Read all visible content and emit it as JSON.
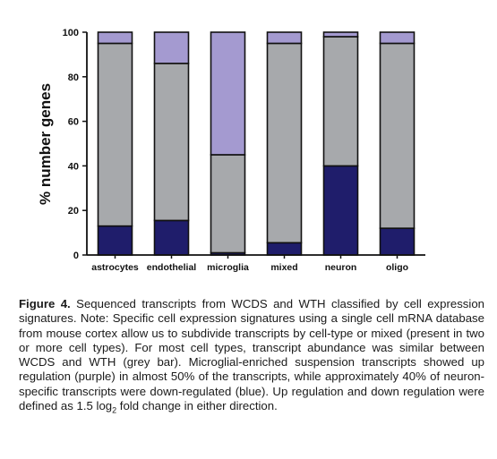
{
  "chart_data": {
    "type": "bar",
    "stacked": true,
    "categories": [
      "astrocytes",
      "endothelial",
      "microglia",
      "mixed",
      "neuron",
      "oligo"
    ],
    "series": [
      {
        "color": "#1f1d6b",
        "values": [
          13,
          15.5,
          1,
          5.5,
          40,
          12
        ]
      },
      {
        "color": "#a7a9ac",
        "values": [
          82,
          70.5,
          44,
          89.5,
          58,
          83
        ]
      },
      {
        "color": "#a49ad0",
        "values": [
          5,
          14,
          55,
          5,
          2,
          5
        ]
      }
    ],
    "ylabel": "% number genes",
    "ylim": [
      0,
      100
    ],
    "yticks": [
      0,
      20,
      40,
      60,
      80,
      100
    ],
    "grid": false,
    "legend": "none"
  },
  "caption": {
    "label": "Figure 4.",
    "text_1": " Sequenced transcripts from WCDS and WTH classified by cell expression signatures. Note: Specific cell expression signatures using a single cell mRNA database from mouse cortex allow us to subdivide transcripts by cell-type or mixed (present in two or more cell types). For most cell types, transcript abundance was similar between WCDS and WTH (grey bar). Microglial-enriched suspension transcripts showed up regulation (purple) in almost 50% of the transcripts, while approximately 40% of neuron-specific transcripts were down-regulated (blue). Up regulation and down regulation were defined as 1.5 log",
    "subscript": "2",
    "text_2": " fold change in either direction."
  }
}
